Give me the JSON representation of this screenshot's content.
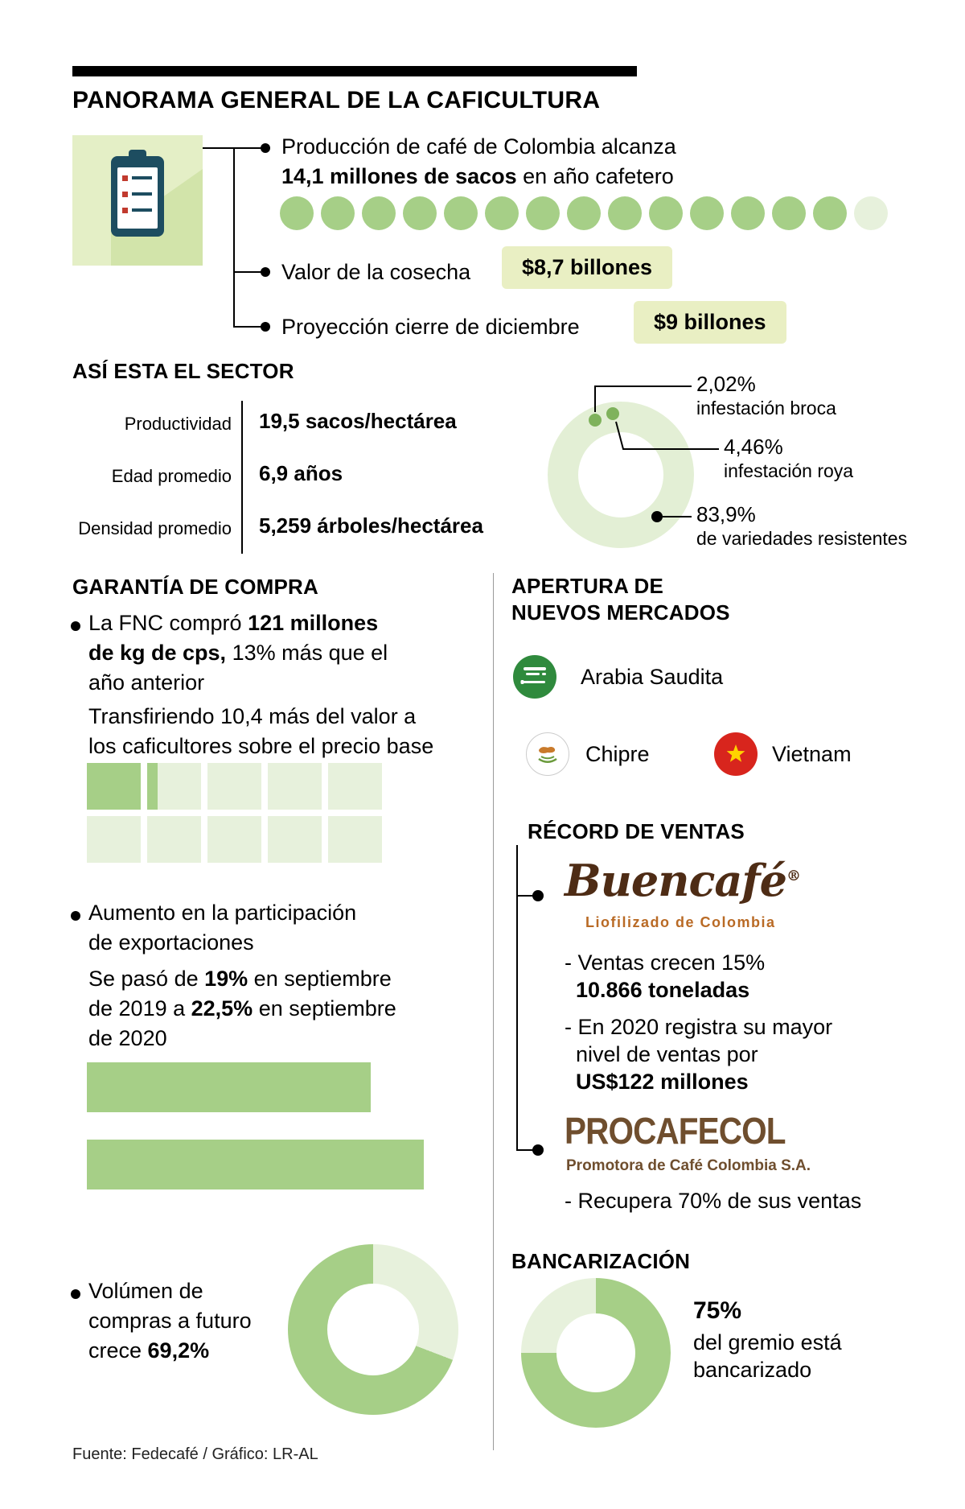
{
  "colors": {
    "green": "#A6CF87",
    "light_green": "#E7F1DC",
    "pill_bg": "#E9EFC3",
    "ring": "#E3EFD5",
    "marker_green": "#7FB25C",
    "saudi_green": "#2F8A3D",
    "vietnam_red": "#D8251D",
    "star_yellow": "#FFD400",
    "buencafe_brown": "#4E2C15",
    "buencafe_orange": "#B96A25",
    "procafecol_brown": "#6F4E2E"
  },
  "header": {
    "title": "PANORAMA GENERAL DE LA CAFICULTURA"
  },
  "production": {
    "line1": "Producción de café de Colombia alcanza",
    "line2_bold": "14,1 millones de sacos",
    "line2_rest": " en año cafetero",
    "valor_label": "Valor de la cosecha",
    "valor_value": "$8,7 billones",
    "proyeccion_label": "Proyección cierre de diciembre",
    "proyeccion_value": "$9 billones"
  },
  "sector": {
    "heading": "ASÍ ESTA EL SECTOR",
    "rows": [
      {
        "label": "Productividad",
        "value": "19,5 sacos/hectárea"
      },
      {
        "label": "Edad promedio",
        "value": "6,9 años"
      },
      {
        "label": "Densidad promedio",
        "value": "5,259 árboles/hectárea"
      }
    ],
    "callouts": [
      {
        "value": "2,02%",
        "label": "infestación broca"
      },
      {
        "value": "4,46%",
        "label": "infestación roya"
      },
      {
        "value": "83,9%",
        "label": "de variedades resistentes"
      }
    ]
  },
  "garantia": {
    "heading": "GARANTÍA DE COMPRA",
    "b1_l1_pre": "La FNC compró ",
    "b1_l1_bold": "121 millones",
    "b1_l2_bold": "de kg de cps,",
    "b1_l2_rest": " 13% más que el",
    "b1_l3": "año anterior",
    "b1_sub_l1": "Transfiriendo 10,4 más del valor a",
    "b1_sub_l2": "los caficultores sobre el precio base",
    "b2_l1": "Aumento en la participación",
    "b2_l2": "de exportaciones",
    "b2_sub_l1_pre": "Se pasó de ",
    "b2_sub_l1_bold": "19%",
    "b2_sub_l1_rest": " en septiembre",
    "b2_sub_l2_pre": "de 2019 a ",
    "b2_sub_l2_bold": "22,5%",
    "b2_sub_l2_rest": " en septiembre",
    "b2_sub_l3": "de 2020",
    "b3_l1": "Volúmen de",
    "b3_l2": "compras a futuro",
    "b3_l3_pre": "crece ",
    "b3_l3_bold": "69,2%"
  },
  "mercados": {
    "heading_l1": "APERTURA DE",
    "heading_l2": "NUEVOS MERCADOS",
    "items": [
      {
        "name": "Arabia Saudita"
      },
      {
        "name": "Chipre"
      },
      {
        "name": "Vietnam"
      }
    ]
  },
  "ventas": {
    "heading": "RÉCORD DE VENTAS",
    "buencafe_logo": "Buencafé",
    "buencafe_reg": "®",
    "buencafe_sub": "Liofilizado de Colombia",
    "buencafe_l1": "- Ventas crecen 15%",
    "buencafe_l1b": "10.866 toneladas",
    "buencafe_l2a": "- En 2020 registra su mayor",
    "buencafe_l2b": "nivel de ventas por",
    "buencafe_l2c": "US$122 millones",
    "procafecol_logo": "PROCAFECOL",
    "procafecol_sub": "Promotora de Café Colombia S.A.",
    "procafecol_l1": "- Recupera 70% de sus ventas"
  },
  "bancarizacion": {
    "heading": "BANCARIZACIÓN",
    "value": "75%",
    "label_l1": "del gremio está",
    "label_l2": "bancarizado"
  },
  "footer": {
    "source": "Fuente: Fedecafé / Gráfico: LR-AL"
  },
  "chart_data": [
    {
      "type": "unit",
      "title": "Producción de café de Colombia (millones de sacos, año cafetero)",
      "value": 14.1,
      "max": 15,
      "units_full": 14,
      "units_partial": 1
    },
    {
      "type": "pie",
      "title": "Así está el sector",
      "labels": [
        "infestación broca",
        "infestación roya",
        "de variedades resistentes"
      ],
      "values": [
        2.02,
        4.46,
        83.9
      ]
    },
    {
      "type": "waffle",
      "title": "Compras FNC de café",
      "value_label": "121 millones de kg de cps (13% más que el año anterior)",
      "filled_cells": 1.2,
      "total_cells": 10
    },
    {
      "type": "bar",
      "title": "Participación de exportaciones",
      "categories": [
        "septiembre 2019",
        "septiembre 2020"
      ],
      "values": [
        19,
        22.5
      ],
      "unit": "%",
      "orientation": "horizontal"
    },
    {
      "type": "pie",
      "title": "Volumen de compras a futuro",
      "labels": [
        "crecimiento",
        "resto"
      ],
      "values": [
        69.2,
        30.8
      ]
    },
    {
      "type": "pie",
      "title": "Bancarización",
      "labels": [
        "bancarizado",
        "no bancarizado"
      ],
      "values": [
        75,
        25
      ]
    }
  ]
}
